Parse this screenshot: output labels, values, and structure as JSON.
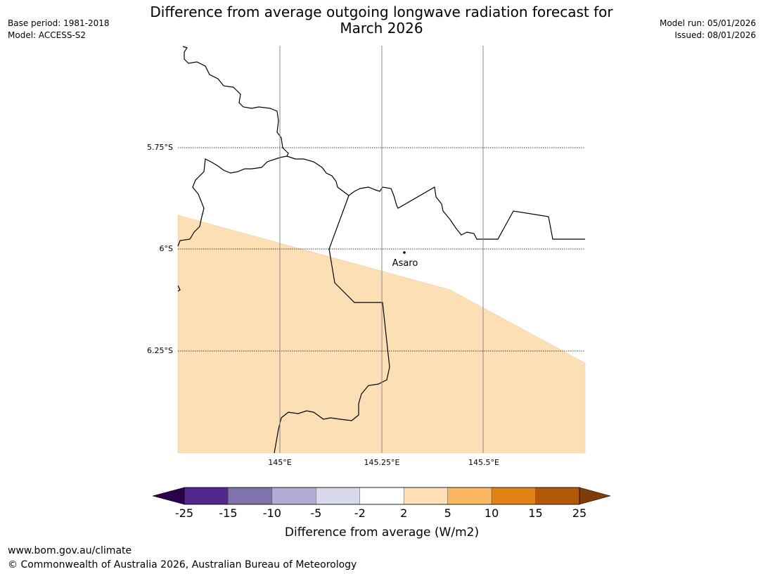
{
  "title_line1": "Difference from average outgoing longwave radiation forecast for",
  "title_line2": "March 2026",
  "meta_left": {
    "base_period": "Base period: 1981-2018",
    "model": "Model: ACCESS-S2"
  },
  "meta_right": {
    "model_run": "Model run: 05/01/2026",
    "issued": "Issued: 08/01/2026"
  },
  "map": {
    "latitudes": [
      {
        "label": "5.75°S",
        "value": -5.75
      },
      {
        "label": "6°S",
        "value": -6.0
      },
      {
        "label": "6.25°S",
        "value": -6.25
      }
    ],
    "longitudes": [
      {
        "label": "145°E",
        "value": 145.0
      },
      {
        "label": "145.25°E",
        "value": 145.25
      },
      {
        "label": "145.5°E",
        "value": 145.5
      }
    ],
    "place": {
      "name": "Asaro",
      "lon": 145.28,
      "lat": -6.01
    },
    "anomaly_fill_color": "#fcdfb4"
  },
  "colorbar": {
    "bounds": [
      "-25",
      "-15",
      "-10",
      "-5",
      "-2",
      "2",
      "5",
      "10",
      "15",
      "25"
    ],
    "colors": [
      "#54278f",
      "#8073ac",
      "#b2abd2",
      "#d8daeb",
      "#ffffff",
      "#fde0b6",
      "#fbb862",
      "#e08214",
      "#b35806"
    ],
    "under_color": "#2d004b",
    "over_color": "#7f3b08",
    "label": "Difference from average (W/m2)"
  },
  "footer": {
    "url": "www.bom.gov.au/climate",
    "copyright": "© Commonwealth of Australia 2026, Australian Bureau of Meteorology"
  }
}
